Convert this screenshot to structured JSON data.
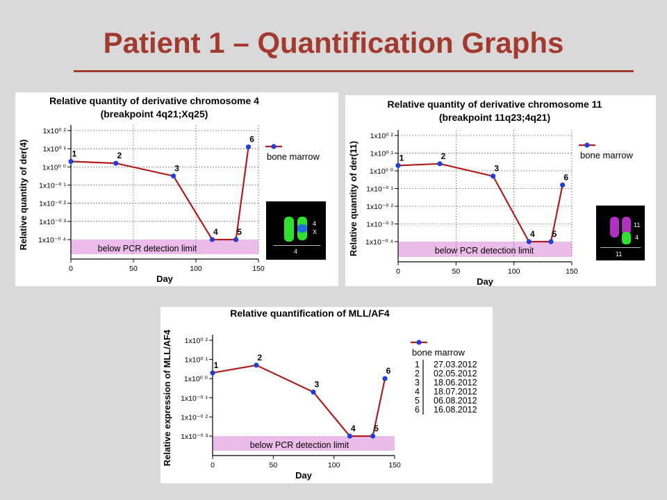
{
  "slide": {
    "title": "Patient 1 – Quantification Graphs"
  },
  "colors": {
    "title": "#a23a2f",
    "series_line": "#b01c1c",
    "series_marker": "#1f3fd6",
    "limit_fill": "#f2c6f0",
    "chrom_green": "#2ee02e",
    "chrom_blue": "#1f6fe0",
    "chrom_magenta": "#b030c0"
  },
  "chart_data": [
    {
      "type": "line",
      "title": "Relative quantity of derivative chromosome 4",
      "subtitle": "(breakpoint 4q21;Xq25)",
      "xlabel": "Day",
      "ylabel": "Relative quantity of der(4)",
      "xlim": [
        0,
        150
      ],
      "x_ticks": [
        "0",
        "50",
        "100",
        "150"
      ],
      "y_scale": "log",
      "y_ticks": [
        "1x10⁰ ²",
        "1x10⁰ ¹",
        "1x10⁰ ⁰",
        "1x10⁻⁰ ¹",
        "1x10⁻⁰ ²",
        "1x10⁻⁰ ³",
        "1x10⁻⁰ ⁴"
      ],
      "ylim_exp": [
        -4,
        2
      ],
      "grid": true,
      "legend": {
        "position": "right",
        "entries": [
          "bone marrow"
        ]
      },
      "detection_limit": {
        "label": "below PCR detection limit",
        "y_exp_max": -4
      },
      "series": [
        {
          "name": "bone marrow",
          "x": [
            0,
            36,
            82,
            113,
            132,
            142
          ],
          "y_exp": [
            0.3,
            0.2,
            -0.5,
            -4.0,
            -4.0,
            1.1
          ],
          "point_labels": [
            "1",
            "2",
            "3",
            "4",
            "5",
            "6"
          ]
        }
      ]
    },
    {
      "type": "line",
      "title": "Relative quantity of derivative chromosome 11",
      "subtitle": "(breakpoint 11q23;4q21)",
      "xlabel": "Day",
      "ylabel": "Relative quantity of der(11)",
      "xlim": [
        0,
        150
      ],
      "x_ticks": [
        "0",
        "50",
        "100",
        "150"
      ],
      "y_scale": "log",
      "y_ticks": [
        "1x10⁰ ²",
        "1x10⁰ ¹",
        "1x10⁰ ⁰",
        "1x10⁻⁰ ¹",
        "1x10⁻⁰ ²",
        "1x10⁻⁰ ³",
        "1x10⁻⁰ ⁴"
      ],
      "ylim_exp": [
        -4,
        2
      ],
      "grid": true,
      "legend": {
        "position": "right",
        "entries": [
          "bone marrow"
        ]
      },
      "detection_limit": {
        "label": "below PCR detection limit",
        "y_exp_max": -4
      },
      "series": [
        {
          "name": "bone marrow",
          "x": [
            0,
            36,
            82,
            113,
            132,
            142
          ],
          "y_exp": [
            0.3,
            0.4,
            -0.3,
            -4.0,
            -4.0,
            -0.8
          ],
          "point_labels": [
            "1",
            "2",
            "3",
            "4",
            "5",
            "6"
          ]
        }
      ]
    },
    {
      "type": "line",
      "title": "Relative quantification of MLL/AF4",
      "subtitle": "",
      "xlabel": "Day",
      "ylabel": "Relative expression of MLL/AF4",
      "xlim": [
        0,
        150
      ],
      "x_ticks": [
        "0",
        "50",
        "100",
        "150"
      ],
      "y_scale": "log",
      "y_ticks": [
        "1x10⁰ ²",
        "1x10⁰ ¹",
        "1x10⁰ ⁰",
        "1x10⁻⁰ ¹",
        "1x10⁻⁰ ²",
        "1x10⁻⁰ ³"
      ],
      "ylim_exp": [
        -3,
        2
      ],
      "grid": false,
      "legend": {
        "position": "right",
        "entries": [
          "bone marrow"
        ]
      },
      "detection_limit": {
        "label": "below PCR detection limit",
        "y_exp_max": -3
      },
      "series": [
        {
          "name": "bone marrow",
          "x": [
            0,
            36,
            83,
            113,
            132,
            142
          ],
          "y_exp": [
            0.3,
            0.7,
            -0.7,
            -3.0,
            -3.0,
            0.0
          ],
          "point_labels": [
            "1",
            "2",
            "3",
            "4",
            "5",
            "6"
          ]
        }
      ],
      "sample_dates": [
        {
          "id": "1",
          "date": "27.03.2012"
        },
        {
          "id": "2",
          "date": "02.05.2012"
        },
        {
          "id": "3",
          "date": "18.06.2012"
        },
        {
          "id": "4",
          "date": "18.07.2012"
        },
        {
          "id": "5",
          "date": "06.08.2012"
        },
        {
          "id": "6",
          "date": "16.08.2012"
        }
      ]
    }
  ],
  "karyotype_insets": [
    {
      "labels": [
        "4",
        "X"
      ],
      "bottom_label": "4"
    },
    {
      "labels": [
        "11",
        "4"
      ],
      "bottom_label": "11"
    }
  ]
}
